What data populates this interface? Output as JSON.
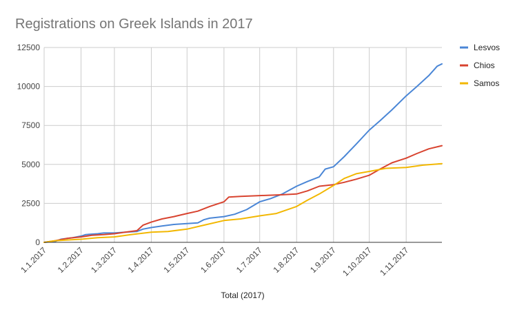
{
  "chart_data": {
    "type": "line",
    "title": "Registrations on Greek Islands in 2017",
    "xlabel": "Total (2017)",
    "ylabel": "",
    "ylim": [
      0,
      12500
    ],
    "yticks": [
      0,
      2500,
      5000,
      7500,
      10000,
      12500
    ],
    "ytick_labels": [
      "0",
      "2500",
      "5000",
      "7500",
      "10000",
      "12500"
    ],
    "xlim": [
      "2017-01-01",
      "2017-12-01"
    ],
    "xticks": [
      "2017-01-01",
      "2017-02-01",
      "2017-03-01",
      "2017-04-01",
      "2017-05-01",
      "2017-06-01",
      "2017-07-01",
      "2017-08-01",
      "2017-09-01",
      "2017-10-01",
      "2017-11-01"
    ],
    "xtick_labels": [
      "1.1.2017",
      "1.2.2017",
      "1.3.2017",
      "1.4.2017",
      "1.5.2017",
      "1.6.2017",
      "1.7.2017",
      "1.8.2017",
      "1.9.2017",
      "1.10.2017",
      "1.11.2017"
    ],
    "grid": true,
    "legend_position": "right",
    "series": [
      {
        "name": "Lesvos",
        "color": "#4a86d6",
        "points": [
          [
            "2017-01-01",
            0
          ],
          [
            "2017-01-10",
            50
          ],
          [
            "2017-01-15",
            200
          ],
          [
            "2017-01-25",
            300
          ],
          [
            "2017-02-01",
            400
          ],
          [
            "2017-02-05",
            500
          ],
          [
            "2017-02-15",
            550
          ],
          [
            "2017-02-20",
            600
          ],
          [
            "2017-03-01",
            600
          ],
          [
            "2017-03-10",
            650
          ],
          [
            "2017-03-20",
            700
          ],
          [
            "2017-03-25",
            850
          ],
          [
            "2017-04-01",
            950
          ],
          [
            "2017-04-10",
            1050
          ],
          [
            "2017-04-20",
            1150
          ],
          [
            "2017-05-01",
            1200
          ],
          [
            "2017-05-10",
            1250
          ],
          [
            "2017-05-15",
            1450
          ],
          [
            "2017-05-20",
            1550
          ],
          [
            "2017-06-01",
            1650
          ],
          [
            "2017-06-10",
            1800
          ],
          [
            "2017-06-20",
            2100
          ],
          [
            "2017-07-01",
            2600
          ],
          [
            "2017-07-10",
            2800
          ],
          [
            "2017-07-20",
            3100
          ],
          [
            "2017-08-01",
            3600
          ],
          [
            "2017-08-10",
            3900
          ],
          [
            "2017-08-20",
            4200
          ],
          [
            "2017-08-25",
            4700
          ],
          [
            "2017-09-01",
            4850
          ],
          [
            "2017-09-10",
            5500
          ],
          [
            "2017-09-20",
            6300
          ],
          [
            "2017-10-01",
            7200
          ],
          [
            "2017-10-10",
            7800
          ],
          [
            "2017-10-20",
            8500
          ],
          [
            "2017-11-01",
            9400
          ],
          [
            "2017-11-10",
            10000
          ],
          [
            "2017-11-20",
            10700
          ],
          [
            "2017-11-27",
            11300
          ],
          [
            "2017-12-01",
            11450
          ]
        ]
      },
      {
        "name": "Chios",
        "color": "#d8432f",
        "points": [
          [
            "2017-01-01",
            0
          ],
          [
            "2017-01-10",
            100
          ],
          [
            "2017-01-20",
            250
          ],
          [
            "2017-02-01",
            350
          ],
          [
            "2017-02-10",
            450
          ],
          [
            "2017-02-20",
            500
          ],
          [
            "2017-03-01",
            550
          ],
          [
            "2017-03-10",
            650
          ],
          [
            "2017-03-20",
            750
          ],
          [
            "2017-03-25",
            1100
          ],
          [
            "2017-04-01",
            1300
          ],
          [
            "2017-04-10",
            1500
          ],
          [
            "2017-04-20",
            1650
          ],
          [
            "2017-05-01",
            1850
          ],
          [
            "2017-05-10",
            2000
          ],
          [
            "2017-05-20",
            2300
          ],
          [
            "2017-06-01",
            2600
          ],
          [
            "2017-06-05",
            2900
          ],
          [
            "2017-06-15",
            2950
          ],
          [
            "2017-07-01",
            3000
          ],
          [
            "2017-07-20",
            3050
          ],
          [
            "2017-08-01",
            3100
          ],
          [
            "2017-08-10",
            3300
          ],
          [
            "2017-08-20",
            3600
          ],
          [
            "2017-09-01",
            3700
          ],
          [
            "2017-09-10",
            3850
          ],
          [
            "2017-09-20",
            4050
          ],
          [
            "2017-10-01",
            4300
          ],
          [
            "2017-10-10",
            4700
          ],
          [
            "2017-10-20",
            5100
          ],
          [
            "2017-11-01",
            5400
          ],
          [
            "2017-11-10",
            5700
          ],
          [
            "2017-11-20",
            6000
          ],
          [
            "2017-12-01",
            6200
          ]
        ]
      },
      {
        "name": "Samos",
        "color": "#f2b701",
        "points": [
          [
            "2017-01-01",
            0
          ],
          [
            "2017-01-10",
            100
          ],
          [
            "2017-01-20",
            150
          ],
          [
            "2017-02-01",
            200
          ],
          [
            "2017-02-15",
            300
          ],
          [
            "2017-03-01",
            350
          ],
          [
            "2017-03-15",
            500
          ],
          [
            "2017-04-01",
            650
          ],
          [
            "2017-04-15",
            700
          ],
          [
            "2017-05-01",
            850
          ],
          [
            "2017-05-15",
            1100
          ],
          [
            "2017-06-01",
            1400
          ],
          [
            "2017-06-15",
            1500
          ],
          [
            "2017-07-01",
            1700
          ],
          [
            "2017-07-15",
            1850
          ],
          [
            "2017-08-01",
            2300
          ],
          [
            "2017-08-10",
            2700
          ],
          [
            "2017-08-20",
            3100
          ],
          [
            "2017-09-01",
            3650
          ],
          [
            "2017-09-10",
            4100
          ],
          [
            "2017-09-20",
            4400
          ],
          [
            "2017-10-01",
            4550
          ],
          [
            "2017-10-15",
            4750
          ],
          [
            "2017-11-01",
            4800
          ],
          [
            "2017-11-15",
            4950
          ],
          [
            "2017-12-01",
            5050
          ]
        ]
      }
    ]
  }
}
